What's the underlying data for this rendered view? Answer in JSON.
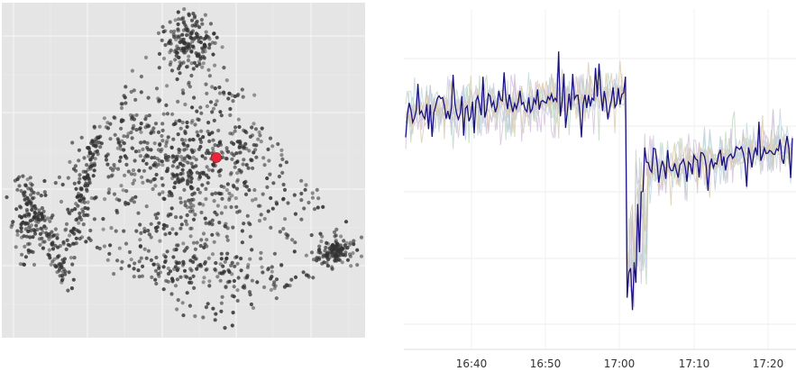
{
  "chart_data": [
    {
      "type": "scatter",
      "title": "",
      "xlabel": "",
      "ylabel": "",
      "grid": true,
      "background": "#e5e5e5",
      "point_color": "#333333",
      "point_count": 1600,
      "cluster_shape": "triangular point cloud with dense edges along the left side, the top apex and the lower right corner",
      "highlight": {
        "x": 0.6,
        "y": 0.56,
        "color": "#e8283a"
      }
    },
    {
      "type": "line",
      "title": "",
      "xlabel": "",
      "ylabel": "",
      "x_ticks": [
        "16:40",
        "16:50",
        "17:00",
        "17:10",
        "17:20"
      ],
      "grid": true,
      "highlight_series": {
        "color": "#1a1080"
      },
      "background_series_colors": [
        "#b9d3bf",
        "#d2b9d9",
        "#bcd3de",
        "#d8c7a8"
      ],
      "phases": [
        {
          "from": "16:31",
          "to": "17:00",
          "level": "high",
          "note": "slowly rising, volatile"
        },
        {
          "at": "17:00",
          "event": "sharp drop with spikes to the minimum"
        },
        {
          "from": "17:02",
          "to": "17:20",
          "level": "lower plateau",
          "note": "recovering"
        }
      ]
    }
  ]
}
